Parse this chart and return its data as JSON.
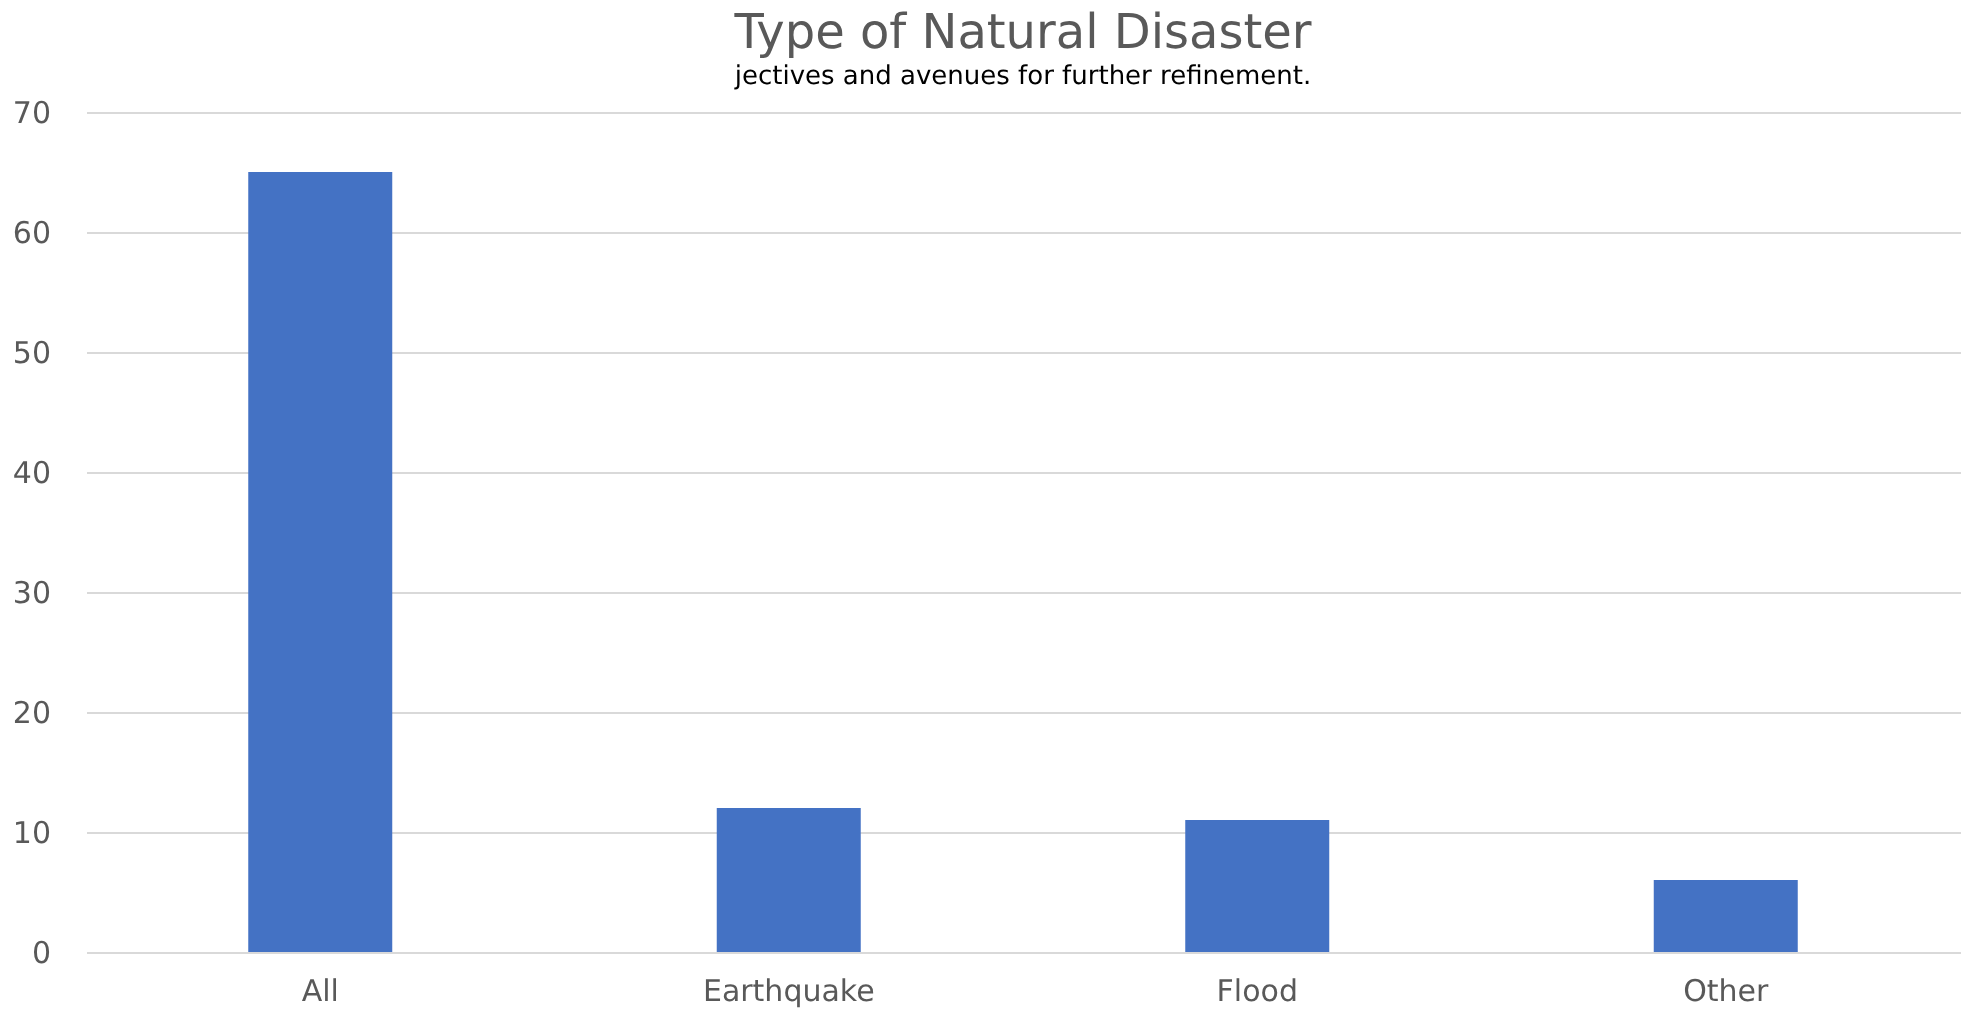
{
  "chart_data": {
    "type": "bar",
    "title": "Type of Natural Disaster",
    "annotations": [
      "jectives and avenues for further refinement."
    ],
    "categories": [
      "All",
      "Earthquake",
      "Flood",
      "Other"
    ],
    "values": [
      65,
      12,
      11,
      6
    ],
    "color": "#4472c4",
    "ylim": [
      0,
      70
    ],
    "yticks": [
      0,
      10,
      20,
      30,
      40,
      50,
      60,
      70
    ],
    "grid": "y"
  }
}
